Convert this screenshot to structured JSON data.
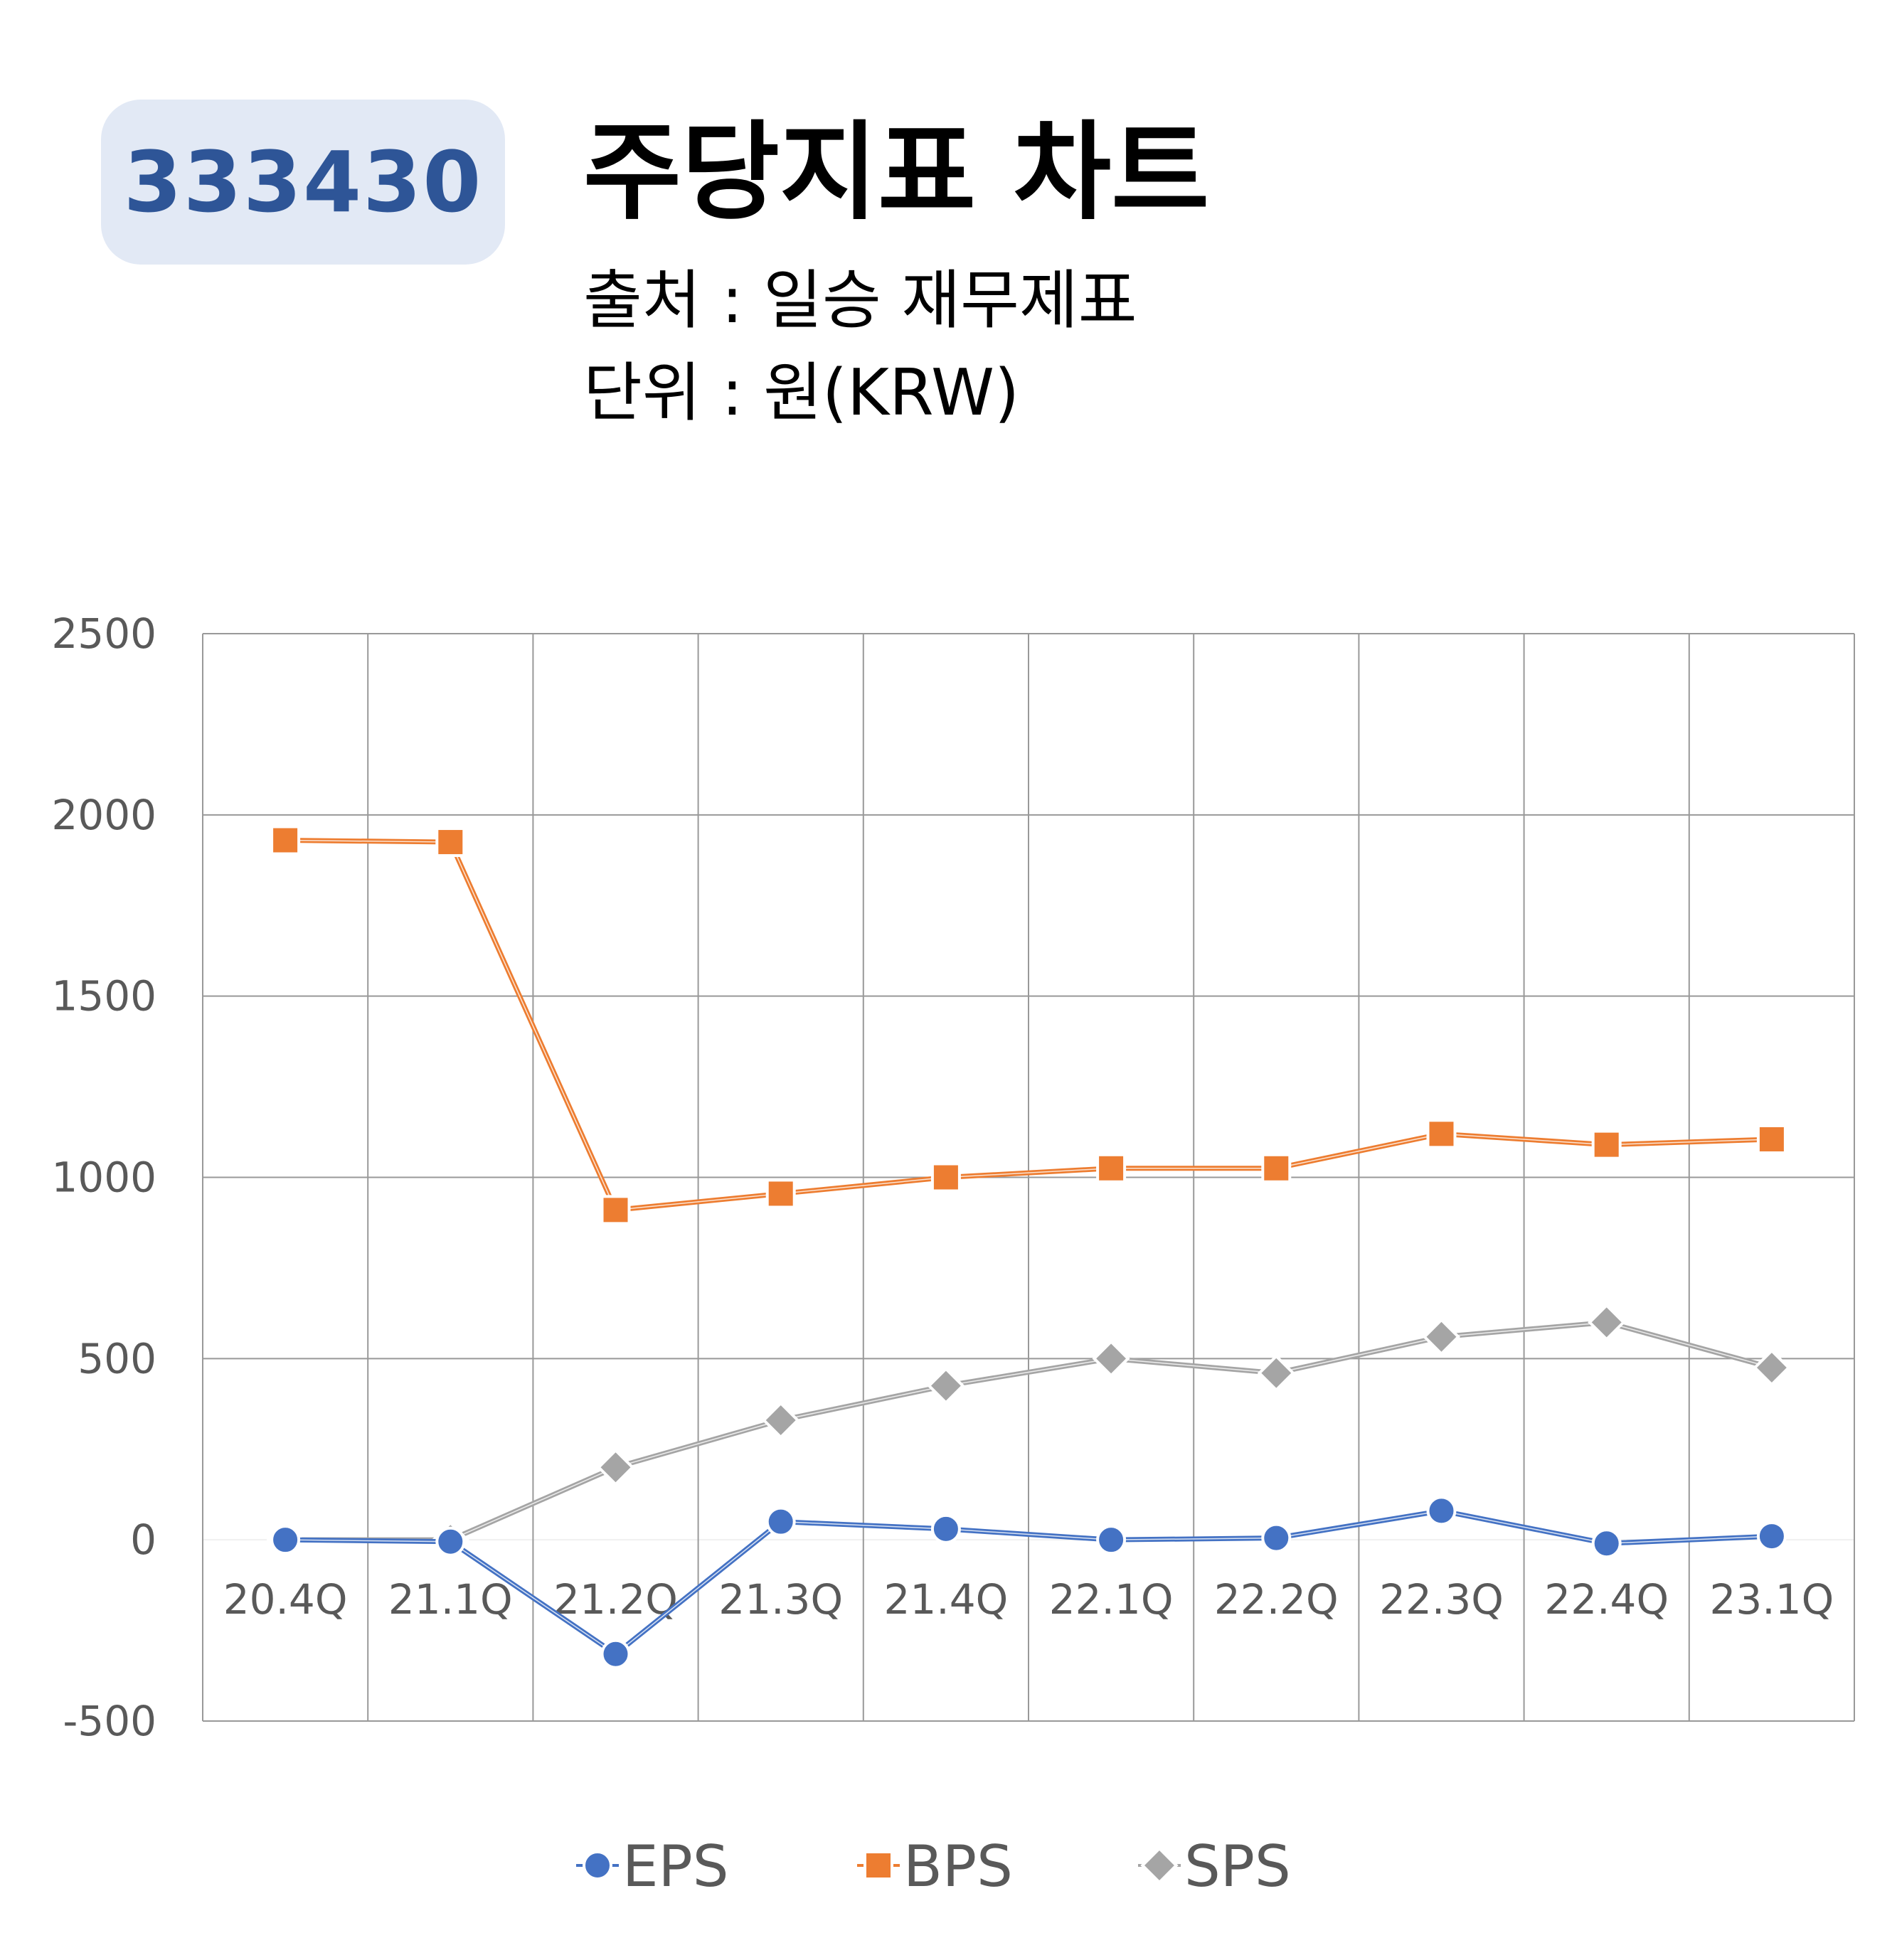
{
  "header": {
    "ticker": "333430",
    "title": "주당지표 차트",
    "source": "출처 : 일승 재무제표",
    "unit": "단위 : 원(KRW)"
  },
  "chart_data": {
    "type": "line",
    "categories": [
      "20.4Q",
      "21.1Q",
      "21.2Q",
      "21.3Q",
      "21.4Q",
      "22.1Q",
      "22.2Q",
      "22.3Q",
      "22.4Q",
      "23.1Q"
    ],
    "ylim": [
      -500,
      2500
    ],
    "yticks": [
      2500,
      2000,
      1500,
      1000,
      500,
      0,
      -500
    ],
    "grid": true,
    "legend_position": "bottom",
    "series": [
      {
        "name": "EPS",
        "marker": "circle",
        "color": "#4472c4",
        "values": [
          0,
          -5,
          -315,
          50,
          30,
          0,
          5,
          80,
          -10,
          10
        ]
      },
      {
        "name": "BPS",
        "marker": "square",
        "color": "#ed7d31",
        "values": [
          1930,
          1925,
          910,
          955,
          1000,
          1025,
          1025,
          1120,
          1090,
          1105
        ]
      },
      {
        "name": "SPS",
        "marker": "diamond",
        "color": "#a5a5a5",
        "values": [
          0,
          0,
          200,
          330,
          425,
          500,
          460,
          560,
          600,
          475
        ]
      }
    ]
  }
}
